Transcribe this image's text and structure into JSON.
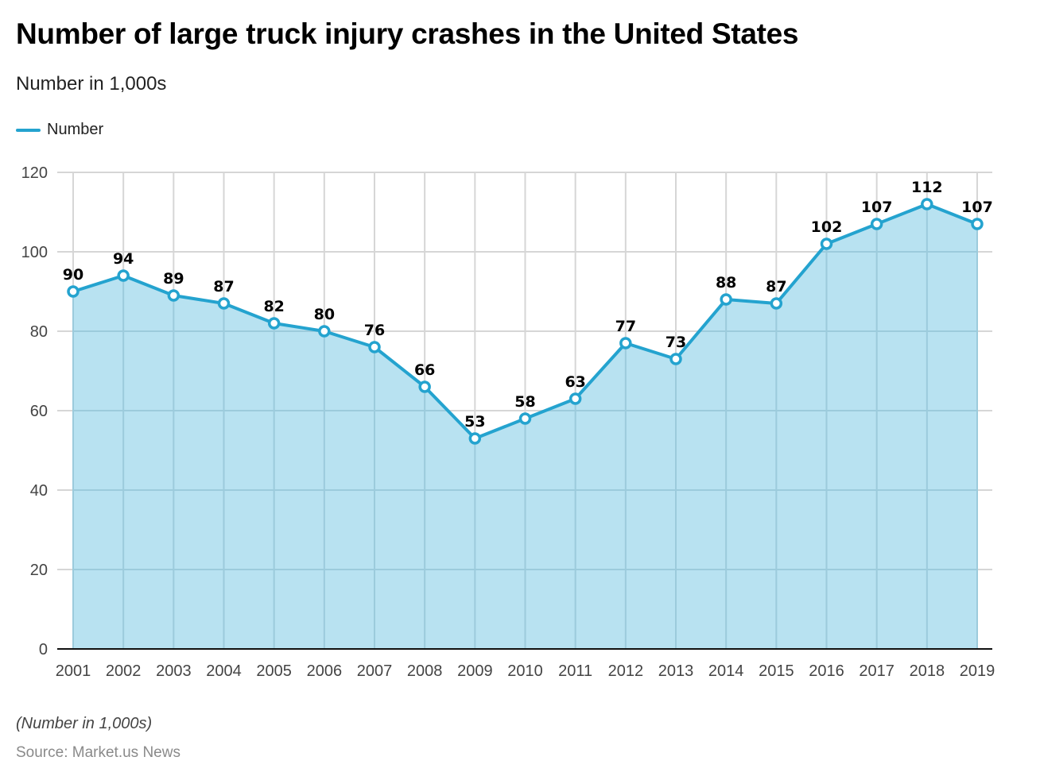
{
  "header": {
    "title": "Number of large truck injury crashes in the United States",
    "subtitle": "Number in 1,000s"
  },
  "legend": {
    "label": "Number",
    "color": "#24a3cf"
  },
  "footer": {
    "note": "(Number in 1,000s)",
    "source": "Source: Market.us News"
  },
  "colors": {
    "line": "#24a3cf",
    "area": "#b8e2f1",
    "grid": "#d6d6d6",
    "axis": "#111111"
  },
  "chart_data": {
    "type": "area",
    "title": "Number of large truck injury crashes in the United States",
    "subtitle": "Number in 1,000s",
    "xlabel": "",
    "ylabel": "",
    "categories": [
      "2001",
      "2002",
      "2003",
      "2004",
      "2005",
      "2006",
      "2007",
      "2008",
      "2009",
      "2010",
      "2011",
      "2012",
      "2013",
      "2014",
      "2015",
      "2016",
      "2017",
      "2018",
      "2019"
    ],
    "series": [
      {
        "name": "Number",
        "values": [
          90,
          94,
          89,
          87,
          82,
          80,
          76,
          66,
          53,
          58,
          63,
          77,
          73,
          88,
          87,
          102,
          107,
          112,
          107
        ]
      }
    ],
    "ylim": [
      0,
      120
    ],
    "yticks": [
      0,
      20,
      40,
      60,
      80,
      100,
      120
    ],
    "grid": true,
    "legend_position": "top-left",
    "data_labels": true
  }
}
